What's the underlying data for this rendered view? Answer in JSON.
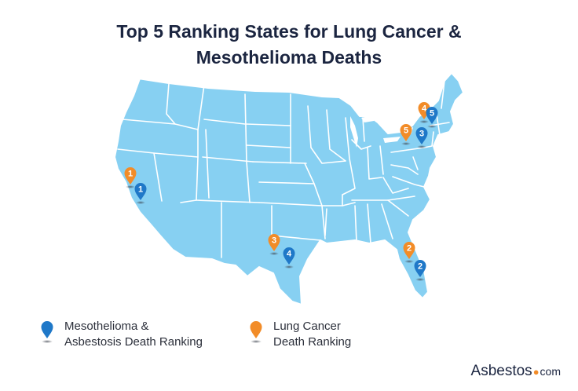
{
  "title": {
    "line1": "Top 5 Ranking States for Lung Cancer &",
    "line2": "Mesothelioma Deaths"
  },
  "colors": {
    "land": "#87d0f2",
    "border": "#ffffff",
    "meso_pin": "#1f78c8",
    "lung_pin": "#f28c28"
  },
  "markers": {
    "lung": [
      {
        "rank": "1",
        "state": "California"
      },
      {
        "rank": "2",
        "state": "Florida"
      },
      {
        "rank": "3",
        "state": "Texas"
      },
      {
        "rank": "4",
        "state": "New York"
      },
      {
        "rank": "5",
        "state": "Pennsylvania"
      }
    ],
    "meso": [
      {
        "rank": "1",
        "state": "California"
      },
      {
        "rank": "2",
        "state": "Florida"
      },
      {
        "rank": "3",
        "state": "New Jersey"
      },
      {
        "rank": "4",
        "state": "Texas"
      },
      {
        "rank": "5",
        "state": "Massachusetts"
      }
    ]
  },
  "legend": {
    "meso_line1": "Mesothelioma &",
    "meso_line2": "Asbestosis Death Ranking",
    "lung_line1": "Lung Cancer",
    "lung_line2": "Death Ranking"
  },
  "brand": {
    "name": "Asbestos",
    "dot": "●",
    "suffix": "com"
  }
}
